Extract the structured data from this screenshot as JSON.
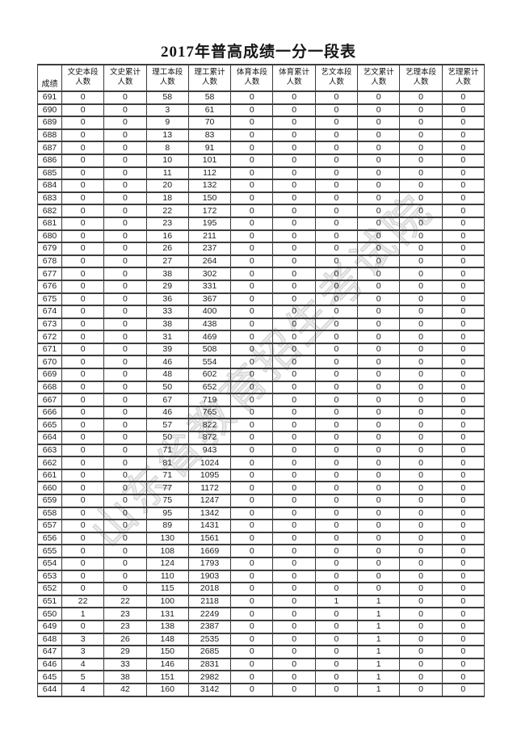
{
  "doc": {
    "title": "2017年普高成绩一分一段表"
  },
  "watermark": {
    "text": "山东省教育招生考试院"
  },
  "table": {
    "score_header": "成绩",
    "column_headers": [
      "文史本段\n人数",
      "文史累计\n人数",
      "理工本段\n人数",
      "理工累计\n人数",
      "体育本段\n人数",
      "体育累计\n人数",
      "艺文本段\n人数",
      "艺文累计\n人数",
      "艺理本段\n人数",
      "艺理累计\n人数"
    ],
    "rows": [
      [
        691,
        0,
        0,
        58,
        58,
        0,
        0,
        0,
        0,
        0,
        0
      ],
      [
        690,
        0,
        0,
        3,
        61,
        0,
        0,
        0,
        0,
        0,
        0
      ],
      [
        689,
        0,
        0,
        9,
        70,
        0,
        0,
        0,
        0,
        0,
        0
      ],
      [
        688,
        0,
        0,
        13,
        83,
        0,
        0,
        0,
        0,
        0,
        0
      ],
      [
        687,
        0,
        0,
        8,
        91,
        0,
        0,
        0,
        0,
        0,
        0
      ],
      [
        686,
        0,
        0,
        10,
        101,
        0,
        0,
        0,
        0,
        0,
        0
      ],
      [
        685,
        0,
        0,
        11,
        112,
        0,
        0,
        0,
        0,
        0,
        0
      ],
      [
        684,
        0,
        0,
        20,
        132,
        0,
        0,
        0,
        0,
        0,
        0
      ],
      [
        683,
        0,
        0,
        18,
        150,
        0,
        0,
        0,
        0,
        0,
        0
      ],
      [
        682,
        0,
        0,
        22,
        172,
        0,
        0,
        0,
        0,
        0,
        0
      ],
      [
        681,
        0,
        0,
        23,
        195,
        0,
        0,
        0,
        0,
        0,
        0
      ],
      [
        680,
        0,
        0,
        16,
        211,
        0,
        0,
        0,
        0,
        0,
        0
      ],
      [
        679,
        0,
        0,
        26,
        237,
        0,
        0,
        0,
        0,
        0,
        0
      ],
      [
        678,
        0,
        0,
        27,
        264,
        0,
        0,
        0,
        0,
        0,
        0
      ],
      [
        677,
        0,
        0,
        38,
        302,
        0,
        0,
        0,
        0,
        0,
        0
      ],
      [
        676,
        0,
        0,
        29,
        331,
        0,
        0,
        0,
        0,
        0,
        0
      ],
      [
        675,
        0,
        0,
        36,
        367,
        0,
        0,
        0,
        0,
        0,
        0
      ],
      [
        674,
        0,
        0,
        33,
        400,
        0,
        0,
        0,
        0,
        0,
        0
      ],
      [
        673,
        0,
        0,
        38,
        438,
        0,
        0,
        0,
        0,
        0,
        0
      ],
      [
        672,
        0,
        0,
        31,
        469,
        0,
        0,
        0,
        0,
        0,
        0
      ],
      [
        671,
        0,
        0,
        39,
        508,
        0,
        0,
        0,
        0,
        0,
        0
      ],
      [
        670,
        0,
        0,
        46,
        554,
        0,
        0,
        0,
        0,
        0,
        0
      ],
      [
        669,
        0,
        0,
        48,
        602,
        0,
        0,
        0,
        0,
        0,
        0
      ],
      [
        668,
        0,
        0,
        50,
        652,
        0,
        0,
        0,
        0,
        0,
        0
      ],
      [
        667,
        0,
        0,
        67,
        719,
        0,
        0,
        0,
        0,
        0,
        0
      ],
      [
        666,
        0,
        0,
        46,
        765,
        0,
        0,
        0,
        0,
        0,
        0
      ],
      [
        665,
        0,
        0,
        57,
        822,
        0,
        0,
        0,
        0,
        0,
        0
      ],
      [
        664,
        0,
        0,
        50,
        872,
        0,
        0,
        0,
        0,
        0,
        0
      ],
      [
        663,
        0,
        0,
        71,
        943,
        0,
        0,
        0,
        0,
        0,
        0
      ],
      [
        662,
        0,
        0,
        81,
        1024,
        0,
        0,
        0,
        0,
        0,
        0
      ],
      [
        661,
        0,
        0,
        71,
        1095,
        0,
        0,
        0,
        0,
        0,
        0
      ],
      [
        660,
        0,
        0,
        77,
        1172,
        0,
        0,
        0,
        0,
        0,
        0
      ],
      [
        659,
        0,
        0,
        75,
        1247,
        0,
        0,
        0,
        0,
        0,
        0
      ],
      [
        658,
        0,
        0,
        95,
        1342,
        0,
        0,
        0,
        0,
        0,
        0
      ],
      [
        657,
        0,
        0,
        89,
        1431,
        0,
        0,
        0,
        0,
        0,
        0
      ],
      [
        656,
        0,
        0,
        130,
        1561,
        0,
        0,
        0,
        0,
        0,
        0
      ],
      [
        655,
        0,
        0,
        108,
        1669,
        0,
        0,
        0,
        0,
        0,
        0
      ],
      [
        654,
        0,
        0,
        124,
        1793,
        0,
        0,
        0,
        0,
        0,
        0
      ],
      [
        653,
        0,
        0,
        110,
        1903,
        0,
        0,
        0,
        0,
        0,
        0
      ],
      [
        652,
        0,
        0,
        115,
        2018,
        0,
        0,
        0,
        0,
        0,
        0
      ],
      [
        651,
        22,
        22,
        100,
        2118,
        0,
        0,
        1,
        1,
        0,
        0
      ],
      [
        650,
        1,
        23,
        131,
        2249,
        0,
        0,
        0,
        1,
        0,
        0
      ],
      [
        649,
        0,
        23,
        138,
        2387,
        0,
        0,
        0,
        1,
        0,
        0
      ],
      [
        648,
        3,
        26,
        148,
        2535,
        0,
        0,
        0,
        1,
        0,
        0
      ],
      [
        647,
        3,
        29,
        150,
        2685,
        0,
        0,
        0,
        1,
        0,
        0
      ],
      [
        646,
        4,
        33,
        146,
        2831,
        0,
        0,
        0,
        1,
        0,
        0
      ],
      [
        645,
        5,
        38,
        151,
        2982,
        0,
        0,
        0,
        1,
        0,
        0
      ],
      [
        644,
        4,
        42,
        160,
        3142,
        0,
        0,
        0,
        1,
        0,
        0
      ]
    ]
  }
}
